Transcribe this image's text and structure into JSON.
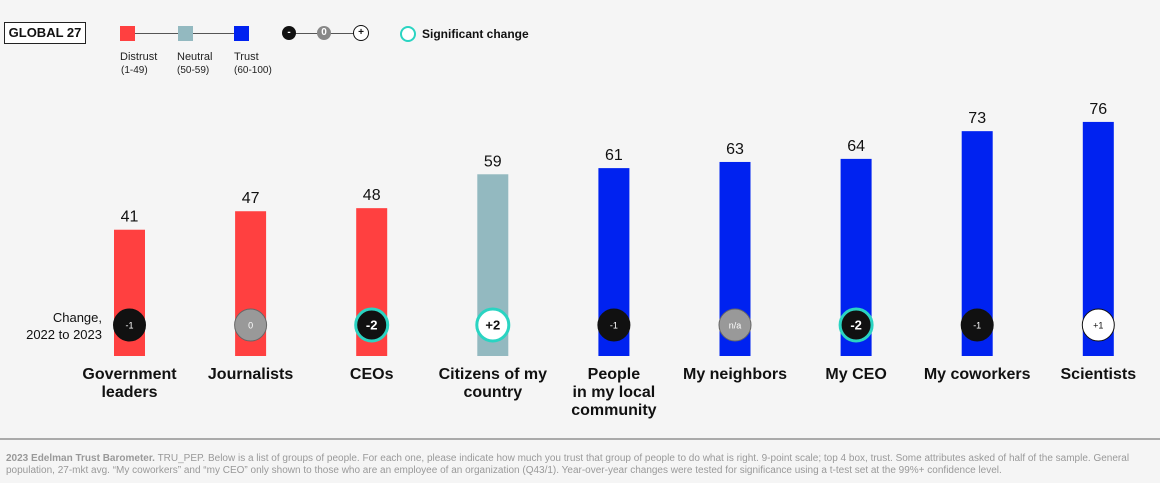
{
  "badge": "GLOBAL 27",
  "legend": {
    "items": [
      {
        "label": "Distrust",
        "range": "(1-49)",
        "color": "#ff4040"
      },
      {
        "label": "Neutral",
        "range": "(50-59)",
        "color": "#93b9c0"
      },
      {
        "label": "Trust",
        "range": "(60-100)",
        "color": "#0022f0"
      }
    ],
    "scale": [
      "-",
      "0",
      "+"
    ],
    "significant_label": "Significant change",
    "significant_color": "#2ad4c2"
  },
  "change_label_line1": "Change,",
  "change_label_line2": "2022 to 2023",
  "chart_data": {
    "type": "bar",
    "categories": [
      "Government leaders",
      "Journalists",
      "CEOs",
      "Citizens of my country",
      "People in my local community",
      "My neighbors",
      "My CEO",
      "My coworkers",
      "Scientists"
    ],
    "category_lines": [
      [
        "Government",
        "leaders"
      ],
      [
        "Journalists"
      ],
      [
        "CEOs"
      ],
      [
        "Citizens of my",
        "country"
      ],
      [
        "People",
        "in my local",
        "community"
      ],
      [
        "My neighbors"
      ],
      [
        "My CEO"
      ],
      [
        "My coworkers"
      ],
      [
        "Scientists"
      ]
    ],
    "values": [
      41,
      47,
      48,
      59,
      61,
      63,
      64,
      73,
      76
    ],
    "value_labels": [
      "41",
      "47",
      "48",
      "59",
      "61",
      "63",
      "64",
      "73",
      "76"
    ],
    "changes": [
      "-1",
      "0",
      "-2",
      "+2",
      "-1",
      "n/a",
      "-2",
      "-1",
      "+1"
    ],
    "change_styles": [
      "neg",
      "zero",
      "neg",
      "pos",
      "neg",
      "na",
      "neg",
      "neg",
      "pos"
    ],
    "significant": [
      false,
      false,
      true,
      true,
      false,
      false,
      true,
      false,
      false
    ],
    "bar_colors": [
      "#ff4040",
      "#ff4040",
      "#ff4040",
      "#93b9c0",
      "#0022f0",
      "#0022f0",
      "#0022f0",
      "#0022f0",
      "#0022f0"
    ],
    "title": "",
    "xlabel": "",
    "ylabel": "",
    "ylim": [
      0,
      100
    ]
  },
  "footnote_bold": "2023 Edelman Trust Barometer.",
  "footnote_text": " TRU_PEP. Below is a list of groups of people. For each one, please indicate how much you trust that group of people to do what is right. 9-point scale; top 4 box, trust. Some attributes asked of half of the sample. General population, 27-mkt avg. “My coworkers” and “my CEO” only shown to those who are an employee of an organization (Q43/1). Year-over-year changes were tested for significance using a t-test set at the 99%+ confidence level."
}
